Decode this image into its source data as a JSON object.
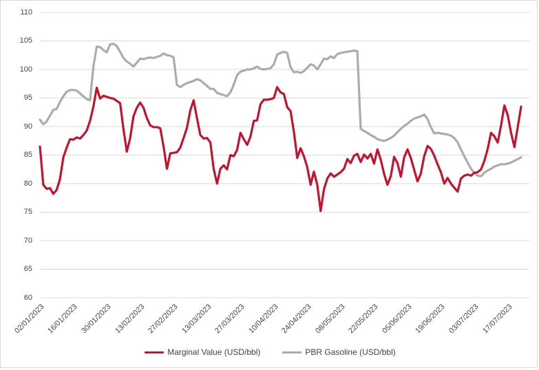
{
  "chart_data": {
    "type": "line",
    "title": "",
    "xlabel": "",
    "ylabel": "",
    "grid": "horizontal",
    "legend_position": "bottom-center",
    "y_axis": {
      "min": 60,
      "max": 110,
      "step": 5,
      "ticks": [
        60,
        65,
        70,
        75,
        80,
        85,
        90,
        95,
        100,
        105,
        110
      ]
    },
    "x_axis": {
      "start_label": "02/01/2023",
      "frequency": "daily (weekdays)",
      "points_per_tick": 10,
      "tick_labels": [
        "02/01/2023",
        "16/01/2023",
        "30/01/2023",
        "13/02/2023",
        "27/02/2023",
        "13/03/2023",
        "27/03/2023",
        "10/04/2023",
        "24/04/2023",
        "08/05/2023",
        "22/05/2023",
        "05/06/2023",
        "19/06/2023",
        "03/07/2023",
        "17/07/2023"
      ]
    },
    "series": [
      {
        "name": "Marginal Value (USD/bbl)",
        "color": "#c4122f",
        "values": [
          86.5,
          79.8,
          79.1,
          79.2,
          78.2,
          78.9,
          80.8,
          84.6,
          86.3,
          87.8,
          87.7,
          88.1,
          87.9,
          88.5,
          89.3,
          91.0,
          93.5,
          96.8,
          94.9,
          95.4,
          95.2,
          95.0,
          94.9,
          94.5,
          94.1,
          89.5,
          85.6,
          88.0,
          91.8,
          93.3,
          94.2,
          93.3,
          91.5,
          90.2,
          89.9,
          89.9,
          89.7,
          86.5,
          82.6,
          85.3,
          85.4,
          85.5,
          86.3,
          88.0,
          89.8,
          92.8,
          94.6,
          91.5,
          88.5,
          87.9,
          88.0,
          87.2,
          82.6,
          80.0,
          82.6,
          83.2,
          82.5,
          85.0,
          84.8,
          85.9,
          88.9,
          87.8,
          86.8,
          88.2,
          91.0,
          91.1,
          93.9,
          94.7,
          94.7,
          94.8,
          95.0,
          96.9,
          96.0,
          95.7,
          93.4,
          92.7,
          89.1,
          84.5,
          86.2,
          84.8,
          82.9,
          79.8,
          82.1,
          79.8,
          75.2,
          79.0,
          80.9,
          81.8,
          81.2,
          81.6,
          82.0,
          82.6,
          84.3,
          83.6,
          84.9,
          85.2,
          83.8,
          85.1,
          84.4,
          85.2,
          83.5,
          86.0,
          84.2,
          81.7,
          79.8,
          81.3,
          84.7,
          83.6,
          81.2,
          84.6,
          86.0,
          84.5,
          82.4,
          80.4,
          81.8,
          84.8,
          86.6,
          86.1,
          84.9,
          83.4,
          82.0,
          80.0,
          81.0,
          80.0,
          79.3,
          78.6,
          80.9,
          81.4,
          81.6,
          81.4,
          81.9,
          82.0,
          82.5,
          84.0,
          86.1,
          88.9,
          88.3,
          87.2,
          90.2,
          93.7,
          92.0,
          88.9,
          86.4,
          89.9,
          93.5
        ]
      },
      {
        "name": "PBR Gasoline (USD/bbl)",
        "color": "#ababab",
        "values": [
          91.2,
          90.4,
          90.9,
          91.9,
          92.9,
          93.1,
          94.3,
          95.3,
          96.1,
          96.4,
          96.4,
          96.3,
          95.8,
          95.3,
          94.8,
          94.6,
          100.5,
          104.0,
          103.9,
          103.4,
          103.0,
          104.4,
          104.5,
          104.1,
          103.1,
          102.0,
          101.4,
          101.0,
          100.5,
          101.2,
          101.9,
          101.8,
          102.0,
          102.1,
          102.0,
          102.2,
          102.4,
          102.8,
          102.5,
          102.4,
          102.1,
          97.3,
          96.9,
          97.3,
          97.6,
          97.8,
          98.0,
          98.3,
          98.1,
          97.6,
          97.1,
          96.6,
          96.6,
          95.9,
          95.7,
          95.5,
          95.3,
          96.0,
          97.3,
          99.0,
          99.6,
          99.8,
          100.0,
          100.0,
          100.2,
          100.5,
          100.1,
          100.0,
          100.1,
          100.2,
          100.9,
          102.6,
          102.9,
          103.1,
          102.9,
          100.4,
          99.5,
          99.6,
          99.4,
          99.7,
          100.3,
          100.9,
          100.7,
          100.0,
          100.9,
          101.9,
          101.8,
          102.3,
          102.0,
          102.7,
          102.9,
          103.0,
          103.1,
          103.2,
          103.3,
          103.2,
          89.6,
          89.2,
          88.9,
          88.5,
          88.2,
          87.8,
          87.6,
          87.5,
          87.7,
          88.0,
          88.4,
          89.0,
          89.6,
          90.1,
          90.5,
          91.0,
          91.4,
          91.6,
          91.8,
          92.1,
          91.3,
          89.9,
          88.8,
          88.9,
          88.8,
          88.7,
          88.6,
          88.4,
          88.0,
          87.2,
          86.0,
          84.8,
          83.7,
          82.6,
          81.9,
          81.4,
          81.3,
          81.9,
          82.3,
          82.6,
          83.0,
          83.2,
          83.4,
          83.4,
          83.5,
          83.7,
          84.0,
          84.3,
          84.6
        ]
      }
    ],
    "gridline_color": "#d9d9d9",
    "axis_text_color": "#444444"
  },
  "legend": {
    "items": [
      {
        "label": "Marginal Value (USD/bbl)",
        "color": "#c4122f"
      },
      {
        "label": "PBR Gasoline (USD/bbl)",
        "color": "#ababab"
      }
    ]
  }
}
